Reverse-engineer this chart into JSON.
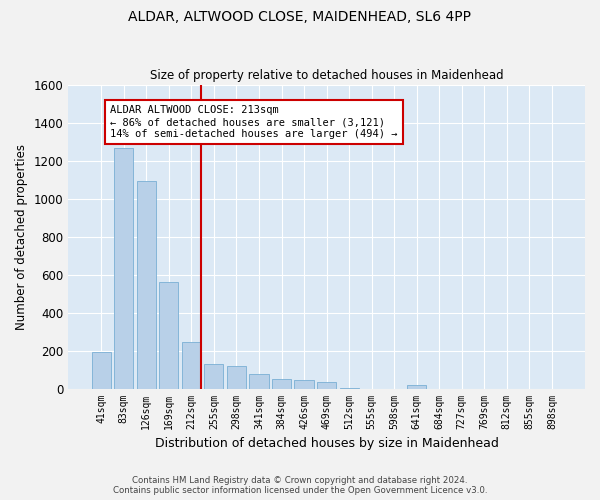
{
  "title_line1": "ALDAR, ALTWOOD CLOSE, MAIDENHEAD, SL6 4PP",
  "title_line2": "Size of property relative to detached houses in Maidenhead",
  "xlabel": "Distribution of detached houses by size in Maidenhead",
  "ylabel": "Number of detached properties",
  "bar_color": "#b8d0e8",
  "bar_edge_color": "#7aafd4",
  "background_color": "#dce9f5",
  "grid_color": "#ffffff",
  "fig_background": "#f2f2f2",
  "categories": [
    "41sqm",
    "83sqm",
    "126sqm",
    "169sqm",
    "212sqm",
    "255sqm",
    "298sqm",
    "341sqm",
    "384sqm",
    "426sqm",
    "469sqm",
    "512sqm",
    "555sqm",
    "598sqm",
    "641sqm",
    "684sqm",
    "727sqm",
    "769sqm",
    "812sqm",
    "855sqm",
    "898sqm"
  ],
  "values": [
    190,
    1265,
    1090,
    560,
    245,
    130,
    120,
    75,
    50,
    45,
    35,
    5,
    0,
    0,
    20,
    0,
    0,
    0,
    0,
    0,
    0
  ],
  "ylim": [
    0,
    1600
  ],
  "yticks": [
    0,
    200,
    400,
    600,
    800,
    1000,
    1200,
    1400,
    1600
  ],
  "property_line_color": "#cc0000",
  "annotation_text": "ALDAR ALTWOOD CLOSE: 213sqm\n← 86% of detached houses are smaller (3,121)\n14% of semi-detached houses are larger (494) →",
  "annotation_box_color": "#ffffff",
  "annotation_box_edge": "#cc0000",
  "footer_line1": "Contains HM Land Registry data © Crown copyright and database right 2024.",
  "footer_line2": "Contains public sector information licensed under the Open Government Licence v3.0."
}
